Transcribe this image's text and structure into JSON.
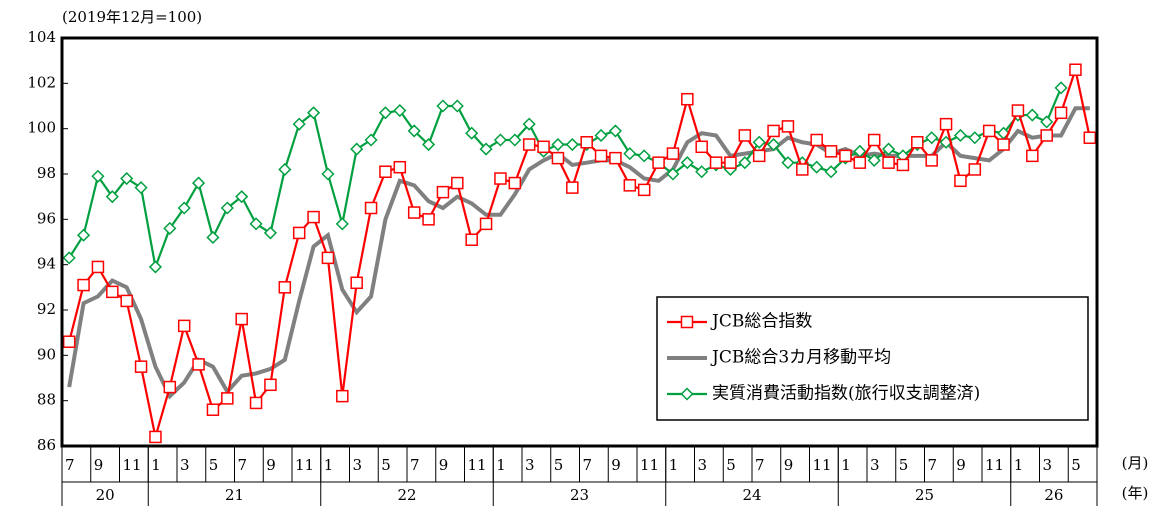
{
  "chart_data": {
    "type": "line",
    "unit_note": "(2019年12月=100)",
    "x_unit_month": "(月)",
    "x_unit_year": "(年)",
    "categories": [
      "7",
      null,
      "9",
      null,
      "11",
      null,
      "1",
      null,
      "3",
      null,
      "5",
      null,
      "7",
      null,
      "9",
      null,
      "11",
      null,
      "1",
      null,
      "3",
      null,
      "5",
      null,
      "7",
      null,
      "9",
      null,
      "11",
      null,
      "1",
      null,
      "3",
      null,
      "5",
      null,
      "7",
      null,
      "9",
      null,
      "11",
      null,
      "1",
      null,
      "3",
      null,
      "5",
      null,
      "7",
      null,
      "9",
      null,
      "11",
      null,
      "1",
      null,
      "3",
      null,
      "5",
      null,
      "7",
      null,
      "9",
      null,
      "11",
      null,
      "1",
      null,
      "3",
      null,
      "5",
      null
    ],
    "years": [
      "20",
      "21",
      "22",
      "23",
      "24",
      "25",
      "26"
    ],
    "ylim": [
      86,
      104
    ],
    "yticks": [
      86,
      88,
      90,
      92,
      94,
      96,
      98,
      100,
      102,
      104
    ],
    "legend": "lower right",
    "series": [
      {
        "name": "JCB総合指数",
        "color": "#ff0000",
        "marker": "square",
        "values": [
          90.6,
          93.1,
          93.9,
          92.8,
          92.4,
          89.5,
          86.4,
          88.6,
          91.3,
          89.6,
          87.6,
          88.1,
          91.6,
          87.9,
          88.7,
          93.0,
          95.4,
          96.1,
          94.3,
          88.2,
          93.2,
          96.5,
          98.1,
          98.3,
          96.3,
          96.0,
          97.2,
          97.6,
          95.1,
          95.8,
          97.8,
          97.6,
          99.3,
          99.2,
          98.7,
          97.4,
          99.4,
          98.8,
          98.7,
          97.5,
          97.3,
          98.5,
          98.9,
          101.3,
          99.2,
          98.5,
          98.5,
          99.7,
          98.8,
          99.9,
          100.1,
          98.2,
          99.5,
          99.0,
          98.8,
          98.5,
          99.5,
          98.5,
          98.4,
          99.4,
          98.6,
          100.2,
          97.7,
          98.2,
          99.9,
          99.3,
          100.8,
          98.8,
          99.7,
          100.7,
          102.6,
          99.6
        ]
      },
      {
        "name": "JCB総合3カ月移動平均",
        "color": "#808080",
        "marker": "none",
        "values": [
          88.6,
          92.3,
          92.6,
          93.3,
          93.0,
          91.6,
          89.5,
          88.2,
          88.8,
          89.8,
          89.5,
          88.4,
          89.1,
          89.2,
          89.4,
          89.8,
          92.4,
          94.8,
          95.3,
          92.9,
          91.9,
          92.6,
          96.0,
          97.7,
          97.5,
          96.8,
          96.5,
          97.0,
          96.7,
          96.2,
          96.2,
          97.1,
          98.2,
          98.6,
          98.9,
          98.4,
          98.5,
          98.6,
          98.6,
          98.3,
          97.8,
          97.7,
          98.2,
          99.4,
          99.8,
          99.7,
          98.8,
          98.9,
          99.0,
          99.1,
          99.6,
          99.4,
          99.3,
          98.9,
          99.1,
          98.8,
          98.9,
          98.8,
          98.8,
          98.8,
          98.8,
          99.4,
          98.8,
          98.7,
          98.6,
          99.1,
          99.9,
          99.6,
          99.7,
          99.7,
          100.9,
          100.9
        ]
      },
      {
        "name": "実質消費活動指数(旅行収支調整済)",
        "color": "#00a040",
        "marker": "diamond",
        "values": [
          94.3,
          95.3,
          97.9,
          97.0,
          97.8,
          97.4,
          93.9,
          95.6,
          96.5,
          97.6,
          95.2,
          96.5,
          97.0,
          95.8,
          95.4,
          98.2,
          100.2,
          100.7,
          98.0,
          95.8,
          99.1,
          99.5,
          100.7,
          100.8,
          99.9,
          99.3,
          101.0,
          101.0,
          99.8,
          99.1,
          99.5,
          99.5,
          100.2,
          99.0,
          99.3,
          99.3,
          99.3,
          99.7,
          99.9,
          98.9,
          98.8,
          98.5,
          98.0,
          98.5,
          98.1,
          98.4,
          98.2,
          98.5,
          99.4,
          99.3,
          98.5,
          98.5,
          98.3,
          98.1,
          98.7,
          99.0,
          98.6,
          99.1,
          98.8,
          99.3,
          99.6,
          99.4,
          99.7,
          99.6,
          99.9,
          99.8,
          100.6,
          100.6,
          100.3,
          101.8,
          null,
          null
        ]
      }
    ]
  }
}
